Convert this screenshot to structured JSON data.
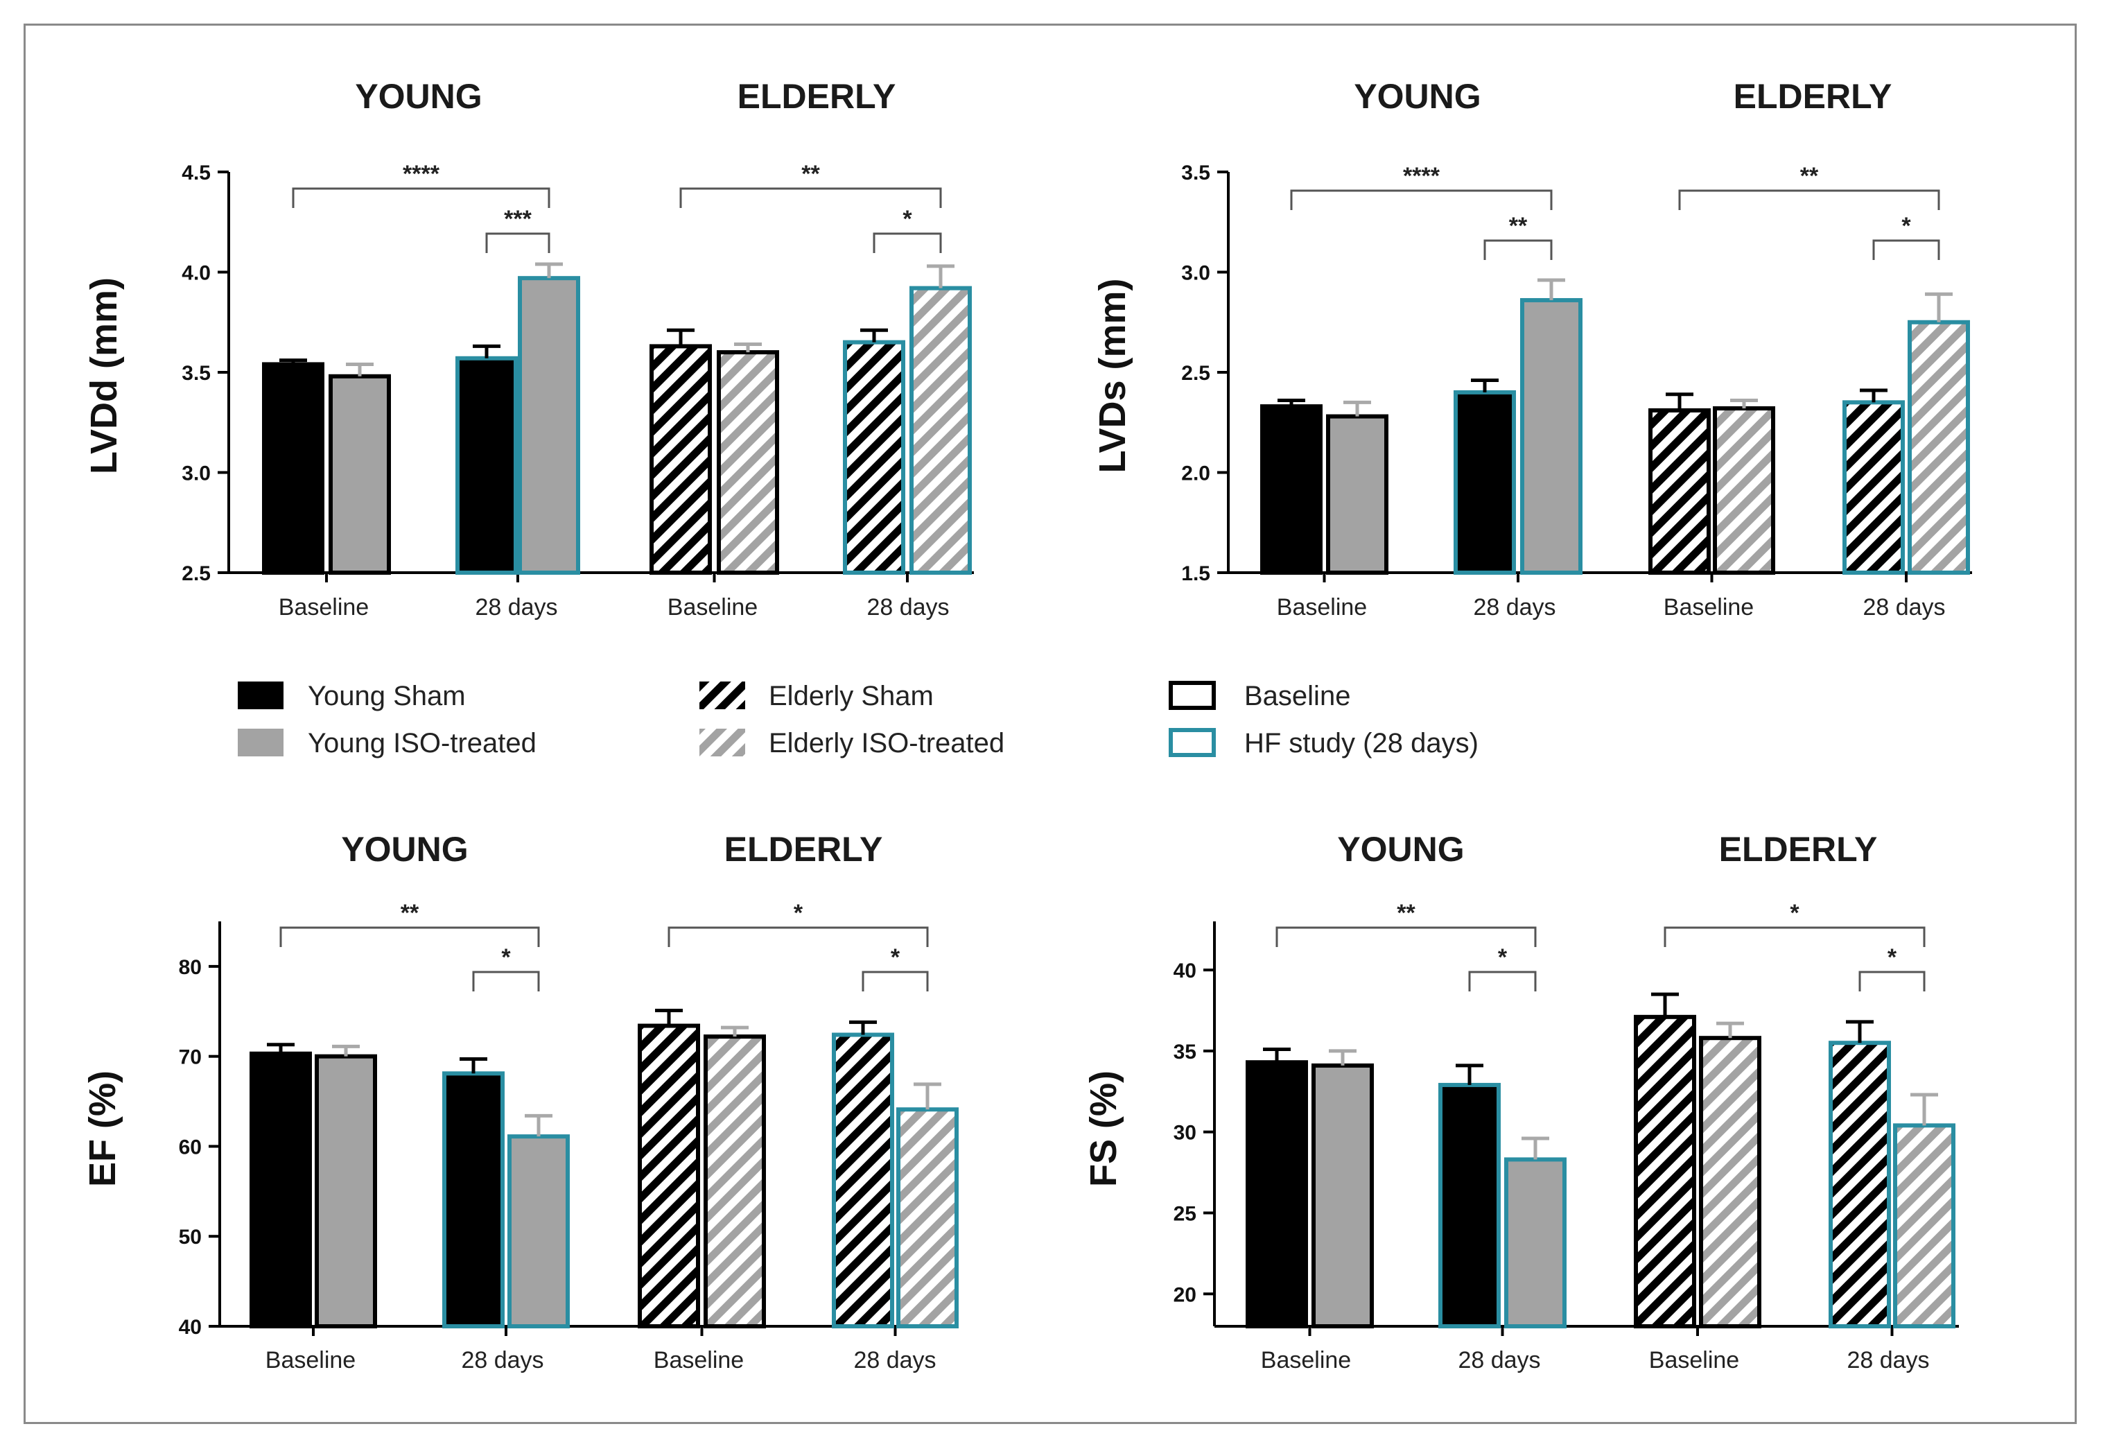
{
  "colors": {
    "black": "#000000",
    "gray": "#a3a3a3",
    "teal": "#2a8ea2",
    "error_gray": "#a9a9a9",
    "bracket": "#555555"
  },
  "legend": {
    "fills": [
      {
        "label": "Young Sham",
        "fill": "solid-black"
      },
      {
        "label": "Young ISO-treated",
        "fill": "solid-gray"
      },
      {
        "label": "Elderly Sham",
        "fill": "hatch-black"
      },
      {
        "label": "Elderly ISO-treated",
        "fill": "hatch-gray"
      }
    ],
    "borders": [
      {
        "label": "Baseline",
        "border": "black"
      },
      {
        "label": "HF study (28 days)",
        "border": "teal"
      }
    ]
  },
  "chart_data": [
    {
      "type": "bar",
      "ylabel": "LVDd (mm)",
      "group_titles": [
        "YOUNG",
        "ELDERLY"
      ],
      "categories": [
        "Baseline",
        "28 days",
        "Baseline",
        "28 days"
      ],
      "ylim": [
        2.5,
        4.5
      ],
      "yticks": [
        "2.5",
        "3.0",
        "3.5",
        "4.0",
        "4.5"
      ],
      "series": [
        {
          "name": "Young Sham",
          "values": [
            3.54,
            3.57,
            null,
            null
          ],
          "errors": [
            0.02,
            0.06,
            null,
            null
          ]
        },
        {
          "name": "Young ISO-treated",
          "values": [
            3.48,
            3.97,
            null,
            null
          ],
          "errors": [
            0.06,
            0.07,
            null,
            null
          ]
        },
        {
          "name": "Elderly Sham",
          "values": [
            null,
            null,
            3.63,
            3.65
          ],
          "errors": [
            null,
            null,
            0.08,
            0.06
          ]
        },
        {
          "name": "Elderly ISO-treated",
          "values": [
            null,
            null,
            3.6,
            3.92
          ],
          "errors": [
            null,
            null,
            0.04,
            0.11
          ]
        }
      ],
      "annotations": [
        {
          "text": "****",
          "between": "Young Baseline vs 28 days ISO"
        },
        {
          "text": "***",
          "between": "Young 28 days Sham vs ISO"
        },
        {
          "text": "**",
          "between": "Elderly Baseline vs 28 days ISO"
        },
        {
          "text": "*",
          "between": "Elderly 28 days Sham vs ISO"
        }
      ]
    },
    {
      "type": "bar",
      "ylabel": "LVDs (mm)",
      "group_titles": [
        "YOUNG",
        "ELDERLY"
      ],
      "categories": [
        "Baseline",
        "28 days",
        "Baseline",
        "28 days"
      ],
      "ylim": [
        1.5,
        3.5
      ],
      "yticks": [
        "1.5",
        "2.0",
        "2.5",
        "3.0",
        "3.5"
      ],
      "series": [
        {
          "name": "Young Sham",
          "values": [
            2.33,
            2.4,
            null,
            null
          ],
          "errors": [
            0.03,
            0.06,
            null,
            null
          ]
        },
        {
          "name": "Young ISO-treated",
          "values": [
            2.28,
            2.86,
            null,
            null
          ],
          "errors": [
            0.07,
            0.1,
            null,
            null
          ]
        },
        {
          "name": "Elderly Sham",
          "values": [
            null,
            null,
            2.31,
            2.35
          ],
          "errors": [
            null,
            null,
            0.08,
            0.06
          ]
        },
        {
          "name": "Elderly ISO-treated",
          "values": [
            null,
            null,
            2.32,
            2.75
          ],
          "errors": [
            null,
            null,
            0.04,
            0.14
          ]
        }
      ],
      "annotations": [
        {
          "text": "****",
          "between": "Young Baseline vs 28 days ISO"
        },
        {
          "text": "**",
          "between": "Young 28 days Sham vs ISO"
        },
        {
          "text": "**",
          "between": "Elderly Baseline vs 28 days ISO"
        },
        {
          "text": "*",
          "between": "Elderly 28 days Sham vs ISO"
        }
      ]
    },
    {
      "type": "bar",
      "ylabel": "EF (%)",
      "group_titles": [
        "YOUNG",
        "ELDERLY"
      ],
      "categories": [
        "Baseline",
        "28 days",
        "Baseline",
        "28 days"
      ],
      "ylim": [
        40,
        85
      ],
      "yticks": [
        "40",
        "50",
        "60",
        "70",
        "80"
      ],
      "series": [
        {
          "name": "Young Sham",
          "values": [
            70.3,
            68.1,
            null,
            null
          ],
          "errors": [
            1.0,
            1.6,
            null,
            null
          ]
        },
        {
          "name": "Young ISO-treated",
          "values": [
            70.0,
            61.1,
            null,
            null
          ],
          "errors": [
            1.1,
            2.3,
            null,
            null
          ]
        },
        {
          "name": "Elderly Sham",
          "values": [
            null,
            null,
            73.4,
            72.4
          ],
          "errors": [
            null,
            null,
            1.7,
            1.4
          ]
        },
        {
          "name": "Elderly ISO-treated",
          "values": [
            null,
            null,
            72.2,
            64.1
          ],
          "errors": [
            null,
            null,
            1.0,
            2.8
          ]
        }
      ],
      "annotations": [
        {
          "text": "**",
          "between": "Young Baseline vs 28 days ISO"
        },
        {
          "text": "*",
          "between": "Young 28 days Sham vs ISO"
        },
        {
          "text": "*",
          "between": "Elderly Baseline vs 28 days ISO"
        },
        {
          "text": "*",
          "between": "Elderly 28 days Sham vs ISO"
        }
      ]
    },
    {
      "type": "bar",
      "ylabel": "FS (%)",
      "group_titles": [
        "YOUNG",
        "ELDERLY"
      ],
      "categories": [
        "Baseline",
        "28 days",
        "Baseline",
        "28 days"
      ],
      "ylim": [
        18,
        43
      ],
      "yticks": [
        "20",
        "25",
        "30",
        "35",
        "40"
      ],
      "series": [
        {
          "name": "Young Sham",
          "values": [
            34.3,
            32.9,
            null,
            null
          ],
          "errors": [
            0.8,
            1.2,
            null,
            null
          ]
        },
        {
          "name": "Young ISO-treated",
          "values": [
            34.1,
            28.3,
            null,
            null
          ],
          "errors": [
            0.9,
            1.3,
            null,
            null
          ]
        },
        {
          "name": "Elderly Sham",
          "values": [
            null,
            null,
            37.1,
            35.5
          ],
          "errors": [
            null,
            null,
            1.4,
            1.3
          ]
        },
        {
          "name": "Elderly ISO-treated",
          "values": [
            null,
            null,
            35.8,
            30.4
          ],
          "errors": [
            null,
            null,
            0.9,
            1.9
          ]
        }
      ],
      "annotations": [
        {
          "text": "**",
          "between": "Young Baseline vs 28 days ISO"
        },
        {
          "text": "*",
          "between": "Young 28 days Sham vs ISO"
        },
        {
          "text": "*",
          "between": "Elderly Baseline vs 28 days ISO"
        },
        {
          "text": "*",
          "between": "Elderly 28 days Sham vs ISO"
        }
      ]
    }
  ]
}
